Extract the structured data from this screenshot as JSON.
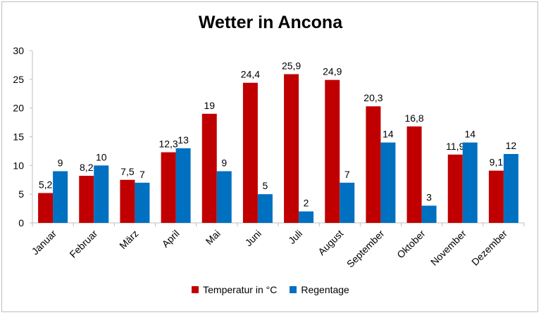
{
  "chart_data": {
    "type": "bar",
    "title": "Wetter in Ancona",
    "categories": [
      "Januar",
      "Februar",
      "März",
      "April",
      "Mai",
      "Juni",
      "Juli",
      "August",
      "September",
      "Oktober",
      "November",
      "Dezember"
    ],
    "series": [
      {
        "name": "Temperatur in °C",
        "color": "#c00000",
        "values": [
          5.2,
          8.2,
          7.5,
          12.3,
          19,
          24.4,
          25.9,
          24.9,
          20.3,
          16.8,
          11.9,
          9.1
        ],
        "labels": [
          "5,2",
          "8,2",
          "7,5",
          "12,3",
          "19",
          "24,4",
          "25,9",
          "24,9",
          "20,3",
          "16,8",
          "11,9",
          "9,1"
        ]
      },
      {
        "name": "Regentage",
        "color": "#0070c0",
        "values": [
          9,
          10,
          7,
          13,
          9,
          5,
          2,
          7,
          14,
          3,
          14,
          12
        ],
        "labels": [
          "9",
          "10",
          "7",
          "13",
          "9",
          "5",
          "2",
          "7",
          "14",
          "3",
          "14",
          "12"
        ]
      }
    ],
    "ylim": [
      0,
      30
    ],
    "yticks": [
      0,
      5,
      10,
      15,
      20,
      25,
      30
    ],
    "grid": false,
    "legend_position": "bottom"
  }
}
